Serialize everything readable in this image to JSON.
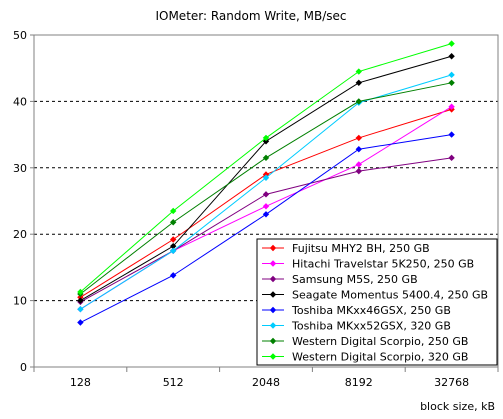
{
  "chart_data": {
    "type": "line",
    "title": "IOMeter: Random Write, MB/sec",
    "xlabel": "block size, kB",
    "ylabel": "",
    "categories": [
      "128",
      "512",
      "2048",
      "8192",
      "32768"
    ],
    "ylim": [
      0,
      50
    ],
    "yticks": [
      0,
      10,
      20,
      30,
      40,
      50
    ],
    "grid": "horizontal dashed",
    "legend_position": "bottom-right",
    "series": [
      {
        "name": "Fujitsu MHY2 BH, 250 GB",
        "color": "#ff0000",
        "values": [
          10.5,
          19.2,
          29.0,
          34.5,
          38.8
        ]
      },
      {
        "name": "Hitachi Travelstar 5K250, 250 GB",
        "color": "#ff00ff",
        "values": [
          8.7,
          17.5,
          24.2,
          30.5,
          39.2
        ]
      },
      {
        "name": "Samsung M5S, 250 GB",
        "color": "#800080",
        "values": [
          9.8,
          17.5,
          26.0,
          29.5,
          31.5
        ]
      },
      {
        "name": "Seagate Momentus 5400.4, 250 GB",
        "color": "#000000",
        "values": [
          10.0,
          18.2,
          34.0,
          42.8,
          46.8
        ]
      },
      {
        "name": "Toshiba MKxx46GSX, 250 GB",
        "color": "#0000ff",
        "values": [
          6.7,
          13.8,
          23.0,
          32.8,
          35.0
        ]
      },
      {
        "name": "Toshiba MKxx52GSX, 320 GB",
        "color": "#00ccff",
        "values": [
          8.7,
          17.5,
          28.5,
          39.8,
          44.0
        ]
      },
      {
        "name": "Western Digital Scorpio, 250 GB",
        "color": "#008000",
        "values": [
          11.0,
          21.8,
          31.5,
          40.0,
          42.8
        ]
      },
      {
        "name": "Western Digital Scorpio, 320 GB",
        "color": "#00ff00",
        "values": [
          11.3,
          23.5,
          34.5,
          44.5,
          48.7
        ]
      }
    ]
  }
}
